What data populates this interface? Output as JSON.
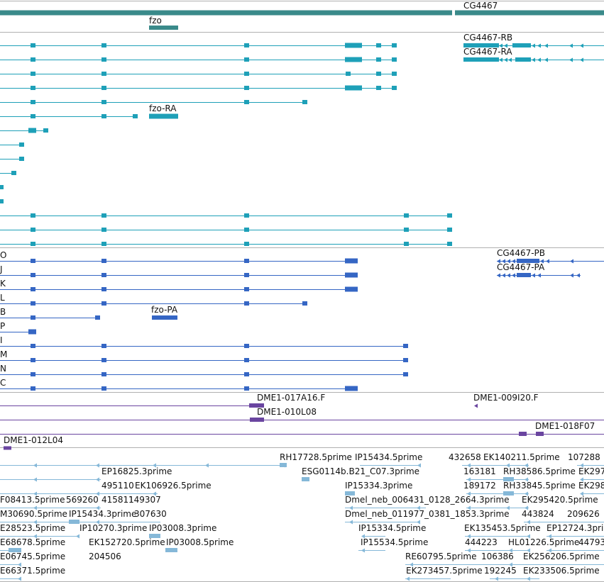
{
  "colors": {
    "gene": "#3a8a8a",
    "transcript": "#1ea0b8",
    "protein": "#3566c4",
    "clone": "#6a45a0",
    "est": "#85b8d8",
    "separator": "#b0b0b0"
  },
  "tracks": {
    "gene": {
      "genes": [
        {
          "name": "CG4467"
        },
        {
          "name": "fzo"
        }
      ]
    },
    "transcripts": {
      "items": [
        {
          "name": "CG4467-RB"
        },
        {
          "name": "CG4467-RA"
        },
        {
          "name": "fzo-RA"
        }
      ]
    },
    "proteins": {
      "rows": [
        "O",
        "J",
        "K",
        "L",
        "B",
        "P",
        "I",
        "M",
        "N",
        "C"
      ],
      "items": [
        {
          "name": "CG4467-PB"
        },
        {
          "name": "CG4467-PA"
        },
        {
          "name": "fzo-PA"
        }
      ]
    },
    "clones": {
      "items": [
        {
          "name": "DME1-017A16.F"
        },
        {
          "name": "DME1-010L08"
        },
        {
          "name": "DME1-009I20.F"
        },
        {
          "name": "DME1-018F07"
        },
        {
          "name": "DME1-012L04"
        }
      ]
    },
    "ests": {
      "labels": [
        "RH17728.5prime",
        "IP15434.5prime",
        "432658",
        "EK140211.5prime",
        "107288",
        "EP16825.3prime",
        "ESG0114b.B21_C07.3prime",
        "163181",
        "RH38586.5prime",
        "EK297",
        "495110",
        "EK106926.5prime",
        "IP15334.3prime",
        "189172",
        "RH33845.5prime",
        "EK298",
        "F08413.5prime",
        "569260",
        "415811",
        "149307",
        "Dmel_neb_006431_0128_2664.3prime",
        "EK295420.5prime",
        "M30690.5prime",
        "IP15434.3prime",
        "307630",
        "Dmel_neb_011977_0381_1853.3prime",
        "443824",
        "209626",
        "E28523.5prime",
        "IP10270.3prime",
        "IP03008.3prime",
        "IP15334.5prime",
        "EK135453.5prime",
        "EP12724.3prime",
        "E68678.5prime",
        "EK152720.5prime",
        "IP03008.5prime",
        "IP15534.5prime",
        "444223",
        "HL01226.5prime",
        "44793",
        "E06745.5prime",
        "204506",
        "RE60795.5prime",
        "106386",
        "EK256206.5prime",
        "E66371.5prime",
        "EK273457.5prime",
        "192245",
        "EK233506.5prime"
      ]
    }
  }
}
